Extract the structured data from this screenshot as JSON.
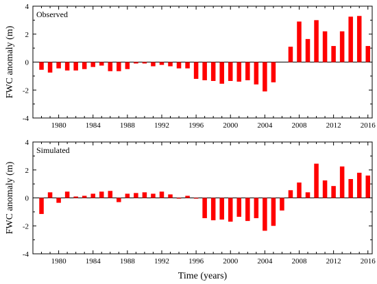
{
  "chart_data": [
    {
      "type": "bar",
      "panel_label": "Observed",
      "ylabel": "FWC anomaly (m)",
      "xlabel": "",
      "ylim": [
        -4,
        4
      ],
      "yticks": [
        4,
        2,
        0,
        -2,
        -4
      ],
      "xlim": [
        1977,
        2016.5
      ],
      "xticks": [
        1980,
        1984,
        1988,
        1992,
        1996,
        2000,
        2004,
        2008,
        2012,
        2016
      ],
      "bar_color": "#ff0000",
      "x": [
        1978,
        1979,
        1980,
        1981,
        1982,
        1983,
        1984,
        1985,
        1986,
        1987,
        1988,
        1989,
        1990,
        1991,
        1992,
        1993,
        1994,
        1995,
        1996,
        1997,
        1998,
        1999,
        2000,
        2001,
        2002,
        2003,
        2004,
        2005,
        2006,
        2007,
        2008,
        2009,
        2010,
        2011,
        2012,
        2013,
        2014,
        2015,
        2016
      ],
      "values": [
        -0.55,
        -0.75,
        -0.45,
        -0.6,
        -0.6,
        -0.5,
        -0.35,
        -0.25,
        -0.65,
        -0.65,
        -0.5,
        -0.1,
        -0.1,
        -0.3,
        -0.2,
        -0.3,
        -0.45,
        -0.45,
        -1.2,
        -1.3,
        -1.35,
        -1.55,
        -1.35,
        -1.4,
        -1.3,
        -1.6,
        -2.1,
        -1.45,
        0,
        1.1,
        2.9,
        1.65,
        3.0,
        2.2,
        1.15,
        2.2,
        3.25,
        3.3,
        1.15
      ]
    },
    {
      "type": "bar",
      "panel_label": "Simulated",
      "ylabel": "FWC anomaly (m)",
      "xlabel": "Time (years)",
      "ylim": [
        -4,
        4
      ],
      "yticks": [
        4,
        2,
        0,
        -2,
        -4
      ],
      "xlim": [
        1977,
        2016.5
      ],
      "xticks": [
        1980,
        1984,
        1988,
        1992,
        1996,
        2000,
        2004,
        2008,
        2012,
        2016
      ],
      "bar_color": "#ff0000",
      "x": [
        1978,
        1979,
        1980,
        1981,
        1982,
        1983,
        1984,
        1985,
        1986,
        1987,
        1988,
        1989,
        1990,
        1991,
        1992,
        1993,
        1994,
        1995,
        1996,
        1997,
        1998,
        1999,
        2000,
        2001,
        2002,
        2003,
        2004,
        2005,
        2006,
        2007,
        2008,
        2009,
        2010,
        2011,
        2012,
        2013,
        2014,
        2015,
        2016
      ],
      "values": [
        -1.15,
        0.4,
        -0.35,
        0.45,
        0.1,
        0.15,
        0.3,
        0.45,
        0.5,
        -0.3,
        0.3,
        0.35,
        0.4,
        0.3,
        0.45,
        0.25,
        -0.05,
        0.15,
        -0.05,
        -1.45,
        -1.6,
        -1.55,
        -1.7,
        -1.35,
        -1.65,
        -1.45,
        -2.35,
        -2.0,
        -0.9,
        0.55,
        1.1,
        0.4,
        2.45,
        1.25,
        0.85,
        2.25,
        1.35,
        1.8,
        1.6
      ]
    }
  ]
}
